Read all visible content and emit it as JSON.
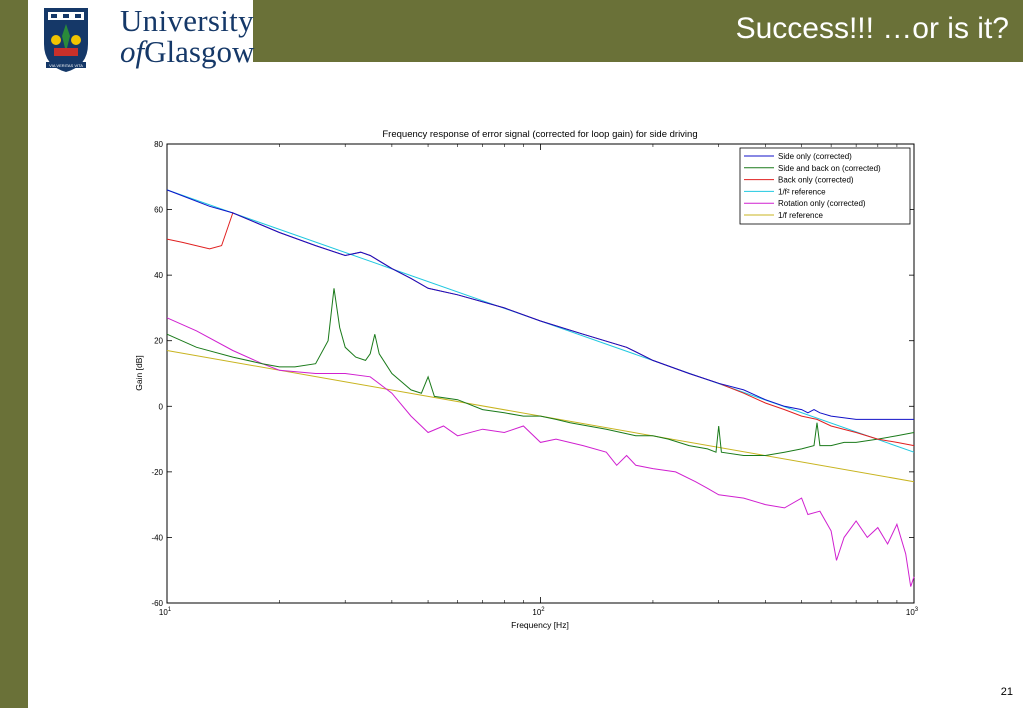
{
  "slide": {
    "title": "Success!!! …or is it?",
    "page_number": "21",
    "logo": {
      "line1": "University",
      "line2_of": "of",
      "line2_rest": "Glasgow",
      "motto": "VIA VERITAS VITA"
    }
  },
  "colors": {
    "brand_olive": "#6a7138",
    "brand_navy": "#153868"
  },
  "chart_data": {
    "type": "line",
    "title": "Frequency response of error signal (corrected for loop gain) for side driving",
    "xlabel": "Frequency [Hz]",
    "ylabel": "Gain [dB]",
    "xscale": "log",
    "xlim": [
      10,
      1000
    ],
    "ylim": [
      -60,
      80
    ],
    "x_ticks": [
      {
        "base": "10",
        "exp": "1"
      },
      {
        "base": "10",
        "exp": "2"
      },
      {
        "base": "10",
        "exp": "3"
      }
    ],
    "y_ticks": [
      "80",
      "60",
      "40",
      "20",
      "0",
      "-20",
      "-40",
      "-60"
    ],
    "grid": false,
    "legend_position": "top-right",
    "series": [
      {
        "name": "Side only (corrected)",
        "color": "#1010c8",
        "points": [
          [
            10,
            66
          ],
          [
            13,
            61
          ],
          [
            15,
            59
          ],
          [
            20,
            53
          ],
          [
            25,
            49
          ],
          [
            30,
            46
          ],
          [
            33,
            47
          ],
          [
            35,
            46
          ],
          [
            40,
            42
          ],
          [
            45,
            39
          ],
          [
            50,
            36
          ],
          [
            60,
            34
          ],
          [
            80,
            30
          ],
          [
            100,
            26
          ],
          [
            130,
            22
          ],
          [
            170,
            18
          ],
          [
            200,
            14
          ],
          [
            250,
            10
          ],
          [
            300,
            7
          ],
          [
            350,
            5
          ],
          [
            400,
            2
          ],
          [
            450,
            0
          ],
          [
            500,
            -1
          ],
          [
            520,
            -2
          ],
          [
            540,
            -1
          ],
          [
            560,
            -2
          ],
          [
            600,
            -3
          ],
          [
            700,
            -4
          ],
          [
            800,
            -4
          ],
          [
            900,
            -4
          ],
          [
            1000,
            -4
          ]
        ]
      },
      {
        "name": "Side and back on (corrected)",
        "color": "#1a7a1a",
        "points": [
          [
            10,
            22
          ],
          [
            12,
            18
          ],
          [
            15,
            15
          ],
          [
            18,
            13
          ],
          [
            20,
            12
          ],
          [
            22,
            12
          ],
          [
            25,
            13
          ],
          [
            27,
            20
          ],
          [
            28,
            36
          ],
          [
            29,
            24
          ],
          [
            30,
            18
          ],
          [
            32,
            15
          ],
          [
            34,
            14
          ],
          [
            35,
            16
          ],
          [
            36,
            22
          ],
          [
            37,
            16
          ],
          [
            40,
            10
          ],
          [
            45,
            5
          ],
          [
            48,
            4
          ],
          [
            50,
            9
          ],
          [
            52,
            3
          ],
          [
            60,
            2
          ],
          [
            70,
            -1
          ],
          [
            80,
            -2
          ],
          [
            90,
            -3
          ],
          [
            100,
            -3
          ],
          [
            110,
            -4
          ],
          [
            120,
            -5
          ],
          [
            150,
            -7
          ],
          [
            180,
            -9
          ],
          [
            200,
            -9
          ],
          [
            220,
            -10
          ],
          [
            250,
            -12
          ],
          [
            280,
            -13
          ],
          [
            295,
            -14
          ],
          [
            300,
            -6
          ],
          [
            305,
            -14
          ],
          [
            350,
            -15
          ],
          [
            400,
            -15
          ],
          [
            450,
            -14
          ],
          [
            500,
            -13
          ],
          [
            540,
            -12
          ],
          [
            550,
            -5
          ],
          [
            560,
            -12
          ],
          [
            600,
            -12
          ],
          [
            650,
            -11
          ],
          [
            700,
            -11
          ],
          [
            800,
            -10
          ],
          [
            900,
            -9
          ],
          [
            1000,
            -8
          ]
        ]
      },
      {
        "name": "Back only (corrected)",
        "color": "#e02020",
        "points": [
          [
            10,
            51
          ],
          [
            11,
            50
          ],
          [
            13,
            48
          ],
          [
            14,
            49
          ],
          [
            15,
            59
          ],
          [
            20,
            53
          ],
          [
            25,
            49
          ],
          [
            30,
            46
          ],
          [
            33,
            47
          ],
          [
            35,
            46
          ],
          [
            40,
            42
          ],
          [
            45,
            39
          ],
          [
            50,
            36
          ],
          [
            60,
            34
          ],
          [
            80,
            30
          ],
          [
            100,
            26
          ],
          [
            130,
            22
          ],
          [
            170,
            18
          ],
          [
            200,
            14
          ],
          [
            250,
            10
          ],
          [
            300,
            7
          ],
          [
            350,
            4
          ],
          [
            400,
            1
          ],
          [
            450,
            -1
          ],
          [
            500,
            -3
          ],
          [
            550,
            -4
          ],
          [
            600,
            -6
          ],
          [
            700,
            -8
          ],
          [
            800,
            -10
          ],
          [
            900,
            -11
          ],
          [
            1000,
            -12
          ]
        ]
      },
      {
        "name": "1/f² reference",
        "color": "#20c8e0",
        "points": [
          [
            10,
            66
          ],
          [
            1000,
            -14
          ]
        ]
      },
      {
        "name": "Rotation only (corrected)",
        "color": "#d020d0",
        "points": [
          [
            10,
            27
          ],
          [
            12,
            23
          ],
          [
            15,
            17
          ],
          [
            18,
            13
          ],
          [
            20,
            11
          ],
          [
            25,
            10
          ],
          [
            30,
            10
          ],
          [
            35,
            9
          ],
          [
            40,
            4
          ],
          [
            45,
            -3
          ],
          [
            50,
            -8
          ],
          [
            55,
            -6
          ],
          [
            60,
            -9
          ],
          [
            70,
            -7
          ],
          [
            80,
            -8
          ],
          [
            90,
            -6
          ],
          [
            100,
            -11
          ],
          [
            110,
            -10
          ],
          [
            130,
            -12
          ],
          [
            150,
            -14
          ],
          [
            160,
            -18
          ],
          [
            170,
            -15
          ],
          [
            180,
            -18
          ],
          [
            200,
            -19
          ],
          [
            230,
            -20
          ],
          [
            260,
            -23
          ],
          [
            280,
            -25
          ],
          [
            300,
            -27
          ],
          [
            350,
            -28
          ],
          [
            400,
            -30
          ],
          [
            450,
            -31
          ],
          [
            500,
            -28
          ],
          [
            520,
            -33
          ],
          [
            560,
            -32
          ],
          [
            600,
            -38
          ],
          [
            620,
            -47
          ],
          [
            650,
            -40
          ],
          [
            700,
            -35
          ],
          [
            750,
            -40
          ],
          [
            800,
            -37
          ],
          [
            850,
            -42
          ],
          [
            900,
            -36
          ],
          [
            950,
            -45
          ],
          [
            980,
            -55
          ],
          [
            1000,
            -52
          ]
        ]
      },
      {
        "name": "1/f reference",
        "color": "#c8b420",
        "points": [
          [
            10,
            17
          ],
          [
            1000,
            -23
          ]
        ]
      }
    ]
  }
}
